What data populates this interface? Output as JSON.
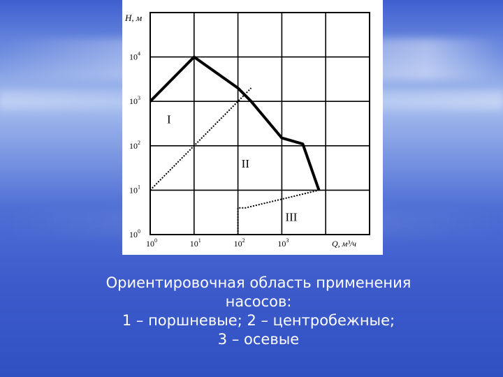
{
  "caption": {
    "line1": "Ориентировочная область применения",
    "line2": "насосов:",
    "line3": "1 – поршневые; 2 – центробежные;",
    "line4": "3 – осевые"
  },
  "chart_data": {
    "type": "line",
    "title": "",
    "xlabel": "Q, м³/ч",
    "ylabel": "H, м",
    "x_scale": "log",
    "y_scale": "log",
    "xlim": [
      1,
      100000
    ],
    "ylim": [
      1,
      100000
    ],
    "grid": true,
    "x_ticks": [
      {
        "value": 1,
        "base": "10",
        "exp": "0"
      },
      {
        "value": 10,
        "base": "10",
        "exp": "1"
      },
      {
        "value": 100,
        "base": "10",
        "exp": "2"
      },
      {
        "value": 1000,
        "base": "10",
        "exp": "3"
      }
    ],
    "y_ticks": [
      {
        "value": 1,
        "base": "10",
        "exp": "0"
      },
      {
        "value": 10,
        "base": "10",
        "exp": "1"
      },
      {
        "value": 100,
        "base": "10",
        "exp": "2"
      },
      {
        "value": 1000,
        "base": "10",
        "exp": "3"
      },
      {
        "value": 10000,
        "base": "10",
        "exp": "4"
      }
    ],
    "series": [
      {
        "style": "solid",
        "x": [
          1,
          10,
          100,
          200,
          1000,
          3000,
          7000
        ],
        "y": [
          1000,
          10000,
          2000,
          1000,
          150,
          110,
          10
        ]
      },
      {
        "style": "dotted",
        "x": [
          1,
          10,
          100,
          200
        ],
        "y": [
          10,
          100,
          1000,
          2000
        ]
      },
      {
        "style": "dotted",
        "x": [
          100,
          100,
          150,
          7000
        ],
        "y": [
          1,
          4,
          4,
          10
        ]
      }
    ],
    "annotations": [
      {
        "text": "I",
        "x": 3,
        "y": 400
      },
      {
        "text": "II",
        "x": 150,
        "y": 40
      },
      {
        "text": "III",
        "x": 1500,
        "y": 2.5
      }
    ]
  }
}
